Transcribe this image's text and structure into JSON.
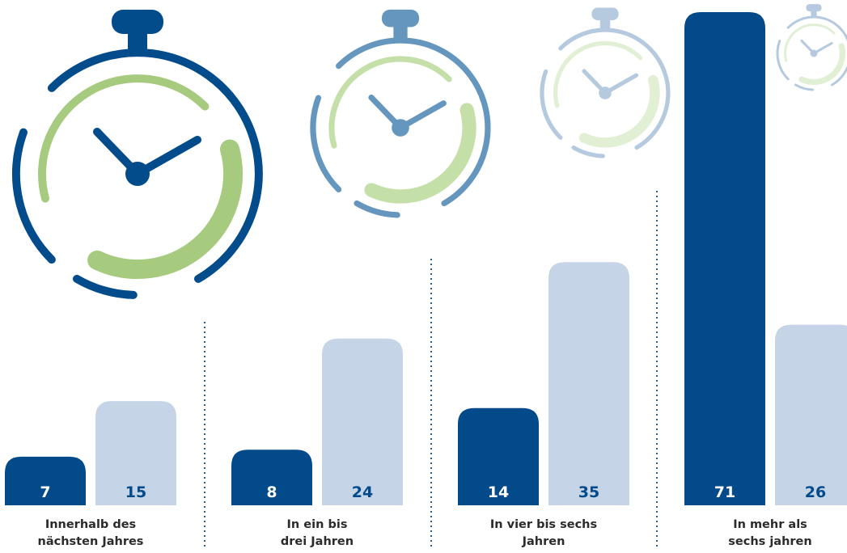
{
  "chart_data": {
    "type": "bar",
    "title": "",
    "xlabel": "",
    "ylabel": "",
    "ylim": [
      0,
      71
    ],
    "grid": false,
    "legend": "none",
    "categories": [
      [
        "Innerhalb des",
        "nächsten Jahres"
      ],
      [
        "In ein bis",
        "drei Jahren"
      ],
      [
        "In vier bis sechs",
        "Jahren"
      ],
      [
        "In mehr als",
        "sechs jahren"
      ]
    ],
    "series": [
      {
        "values": [
          7,
          8,
          14,
          71
        ],
        "color": "#024a8a",
        "label_color": "#ffffff"
      },
      {
        "values": [
          15,
          24,
          35,
          26
        ],
        "color": "#c5d4e6",
        "label_color": "#024a8a"
      }
    ],
    "decoration": {
      "icon": "stopwatch-icon",
      "colors": {
        "ring": [
          "#034c8c",
          "#6596be",
          "#b5c9df",
          "#b5c9df"
        ],
        "arc": [
          "#a6cb7e",
          "#c4e0a8",
          "#e1efd4",
          "#e1efd4"
        ]
      }
    }
  }
}
